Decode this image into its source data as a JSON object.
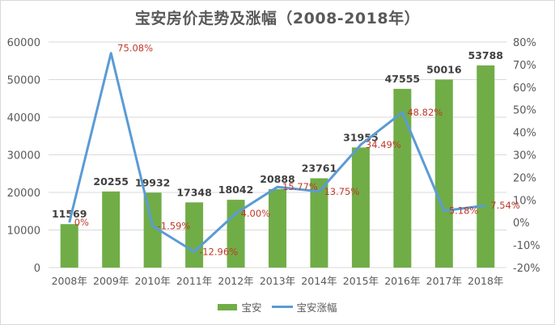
{
  "chart_data": {
    "type": "bar+line",
    "title": "宝安房价走势及涨幅（2008-2018年）",
    "categories": [
      "2008年",
      "2009年",
      "2010年",
      "2011年",
      "2012年",
      "2013年",
      "2014年",
      "2015年",
      "2016年",
      "2017年",
      "2018年"
    ],
    "series": [
      {
        "name": "宝安",
        "type": "bar",
        "axis": "left",
        "color": "#70ad47",
        "values": [
          11569,
          20255,
          19932,
          17348,
          18042,
          20888,
          23761,
          31955,
          47555,
          50016,
          53788
        ],
        "labels": [
          "11569",
          "20255",
          "19932",
          "17348",
          "18042",
          "20888",
          "23761",
          "31955",
          "47555",
          "50016",
          "53788"
        ]
      },
      {
        "name": "宝安涨幅",
        "type": "line",
        "axis": "right",
        "color": "#5b9bd5",
        "values": [
          0,
          75.08,
          -1.59,
          -12.96,
          4.0,
          15.77,
          13.75,
          34.49,
          48.82,
          5.18,
          7.54
        ],
        "labels": [
          "0%",
          "75.08%",
          "-1.59%",
          "-12.96%",
          "4.00%",
          "15.77%",
          "13.75%",
          "34.49%",
          "48.82%",
          "5.18%",
          "7.54%"
        ]
      }
    ],
    "left_axis": {
      "ylim": [
        0,
        60000
      ],
      "ticks": [
        "0",
        "10000",
        "20000",
        "30000",
        "40000",
        "50000",
        "60000"
      ]
    },
    "right_axis": {
      "ylim": [
        -20,
        80
      ],
      "ticks": [
        "-20%",
        "-10%",
        "0%",
        "10%",
        "20%",
        "30%",
        "40%",
        "50%",
        "60%",
        "70%",
        "80%"
      ]
    },
    "grid": true,
    "legend_position": "bottom",
    "xlabel": "",
    "ylabel": ""
  },
  "legend": {
    "bar_label": "宝安",
    "line_label": "宝安涨幅"
  }
}
